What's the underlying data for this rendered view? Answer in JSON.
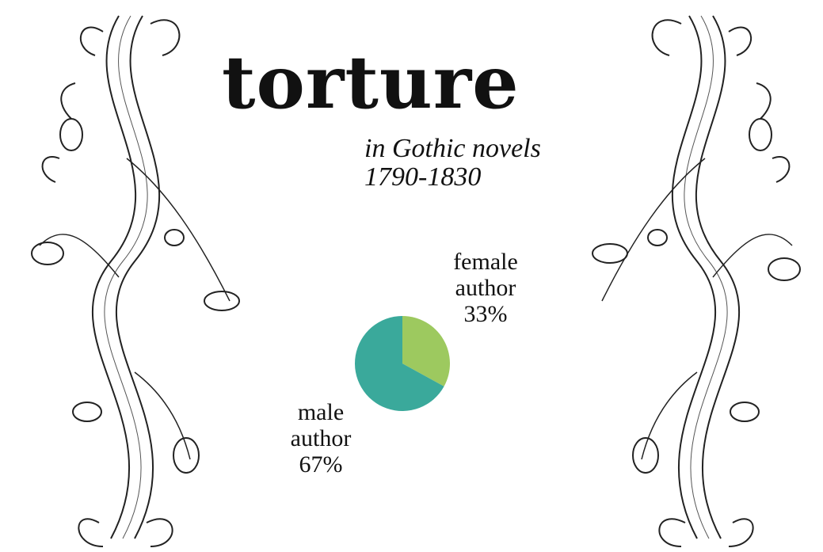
{
  "title": "torture",
  "subtitle_line1": "in Gothic novels",
  "subtitle_line2": "1790-1830",
  "chart_data": {
    "type": "pie",
    "title": "",
    "slices": [
      {
        "label_line1": "female",
        "label_line2": "author",
        "percent_text": "33%",
        "value": 33,
        "color": "#9dc95f"
      },
      {
        "label_line1": "male",
        "label_line2": "author",
        "percent_text": "67%",
        "value": 67,
        "color": "#3aa99b"
      }
    ]
  },
  "decorations": {
    "left": "floral-scroll-ornament",
    "right": "floral-scroll-ornament"
  }
}
